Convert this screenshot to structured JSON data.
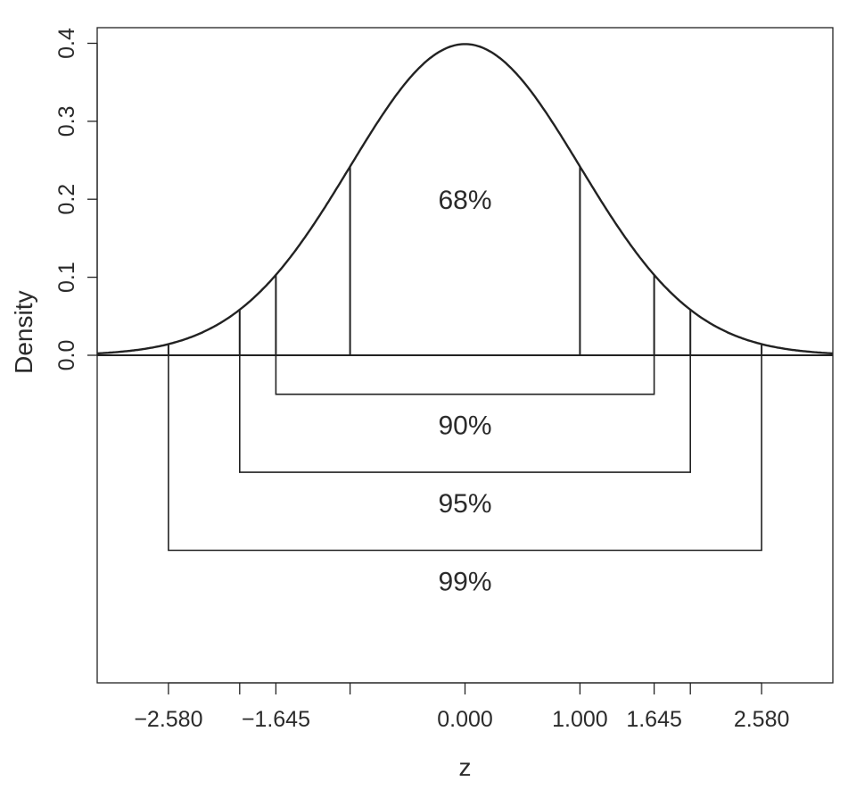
{
  "chart_data": {
    "type": "line",
    "title": "",
    "xlabel": "z",
    "ylabel": "Density",
    "xlim": [
      -3.2,
      3.2
    ],
    "ylim": [
      -0.42,
      0.42
    ],
    "y_ticks": [
      0.0,
      0.1,
      0.2,
      0.3,
      0.4
    ],
    "y_tick_labels": [
      "0.0",
      "0.1",
      "0.2",
      "0.3",
      "0.4"
    ],
    "x_ticks": [
      -2.58,
      -1.96,
      -1.645,
      -1.0,
      0.0,
      1.0,
      1.645,
      1.96,
      2.58
    ],
    "x_tick_labels": [
      "-2.580",
      "",
      "-1.645",
      "",
      "0.000",
      "1.000",
      "1.645",
      "",
      "2.580"
    ],
    "series": [
      {
        "distribution": "standard-normal",
        "mean": 0,
        "sd": 1
      }
    ],
    "density_lines_at": [
      -2.58,
      -1.96,
      -1.645,
      -1.0,
      1.0,
      1.645,
      1.96,
      2.58
    ],
    "center_label": "68%",
    "intervals": [
      {
        "lower": -1.645,
        "upper": 1.645,
        "depth": 0.05,
        "label": "90%"
      },
      {
        "lower": -1.96,
        "upper": 1.96,
        "depth": 0.15,
        "label": "95%"
      },
      {
        "lower": -2.58,
        "upper": 2.58,
        "depth": 0.25,
        "label": "99%"
      }
    ],
    "grid": false,
    "legend": "none"
  }
}
